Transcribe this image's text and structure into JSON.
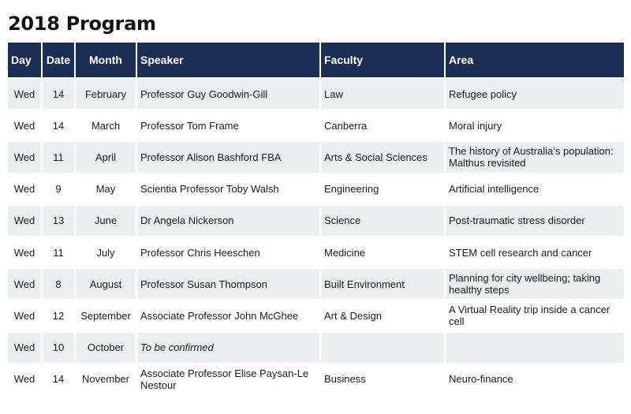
{
  "title": "2018 Program",
  "colors": {
    "header_bg": "#1b2e53",
    "header_text": "#ffffff",
    "stripe_bg": "#e9f0ef"
  },
  "table": {
    "headers": {
      "day": "Day",
      "date": "Date",
      "month": "Month",
      "speaker": "Speaker",
      "faculty": "Faculty",
      "area": "Area"
    },
    "rows": [
      {
        "day": "Wed",
        "date": "14",
        "month": "February",
        "speaker": "Professor Guy Goodwin-Gill",
        "faculty": "Law",
        "area": "Refugee policy"
      },
      {
        "day": "Wed",
        "date": "14",
        "month": "March",
        "speaker": "Professor Tom Frame",
        "faculty": "Canberra",
        "area": "Moral injury"
      },
      {
        "day": "Wed",
        "date": "11",
        "month": "April",
        "speaker": "Professor Alison Bashford FBA",
        "faculty": "Arts & Social Sciences",
        "area": "The history of Australia’s population: Malthus revisited"
      },
      {
        "day": "Wed",
        "date": "9",
        "month": "May",
        "speaker": "Scientia Professor Toby Walsh",
        "faculty": "Engineering",
        "area": "Artificial intelligence"
      },
      {
        "day": "Wed",
        "date": "13",
        "month": "June",
        "speaker": "Dr Angela Nickerson",
        "faculty": "Science",
        "area": "Post-traumatic stress disorder"
      },
      {
        "day": "Wed",
        "date": "11",
        "month": "July",
        "speaker": "Professor Chris Heeschen",
        "faculty": "Medicine",
        "area": "STEM cell research and cancer"
      },
      {
        "day": "Wed",
        "date": "8",
        "month": "August",
        "speaker": "Professor Susan Thompson",
        "faculty": "Built Environment",
        "area": "Planning for city wellbeing; taking healthy steps"
      },
      {
        "day": "Wed",
        "date": "12",
        "month": "September",
        "speaker": "Associate Professor John McGhee",
        "faculty": "Art & Design",
        "area": "A Virtual Reality trip inside a cancer cell"
      },
      {
        "day": "Wed",
        "date": "10",
        "month": "October",
        "speaker": "To be confirmed",
        "faculty": "",
        "area": ""
      },
      {
        "day": "Wed",
        "date": "14",
        "month": "November",
        "speaker": "Associate Professor Elise Paysan-Le Nestour",
        "faculty": "Business",
        "area": "Neuro-finance"
      }
    ]
  }
}
